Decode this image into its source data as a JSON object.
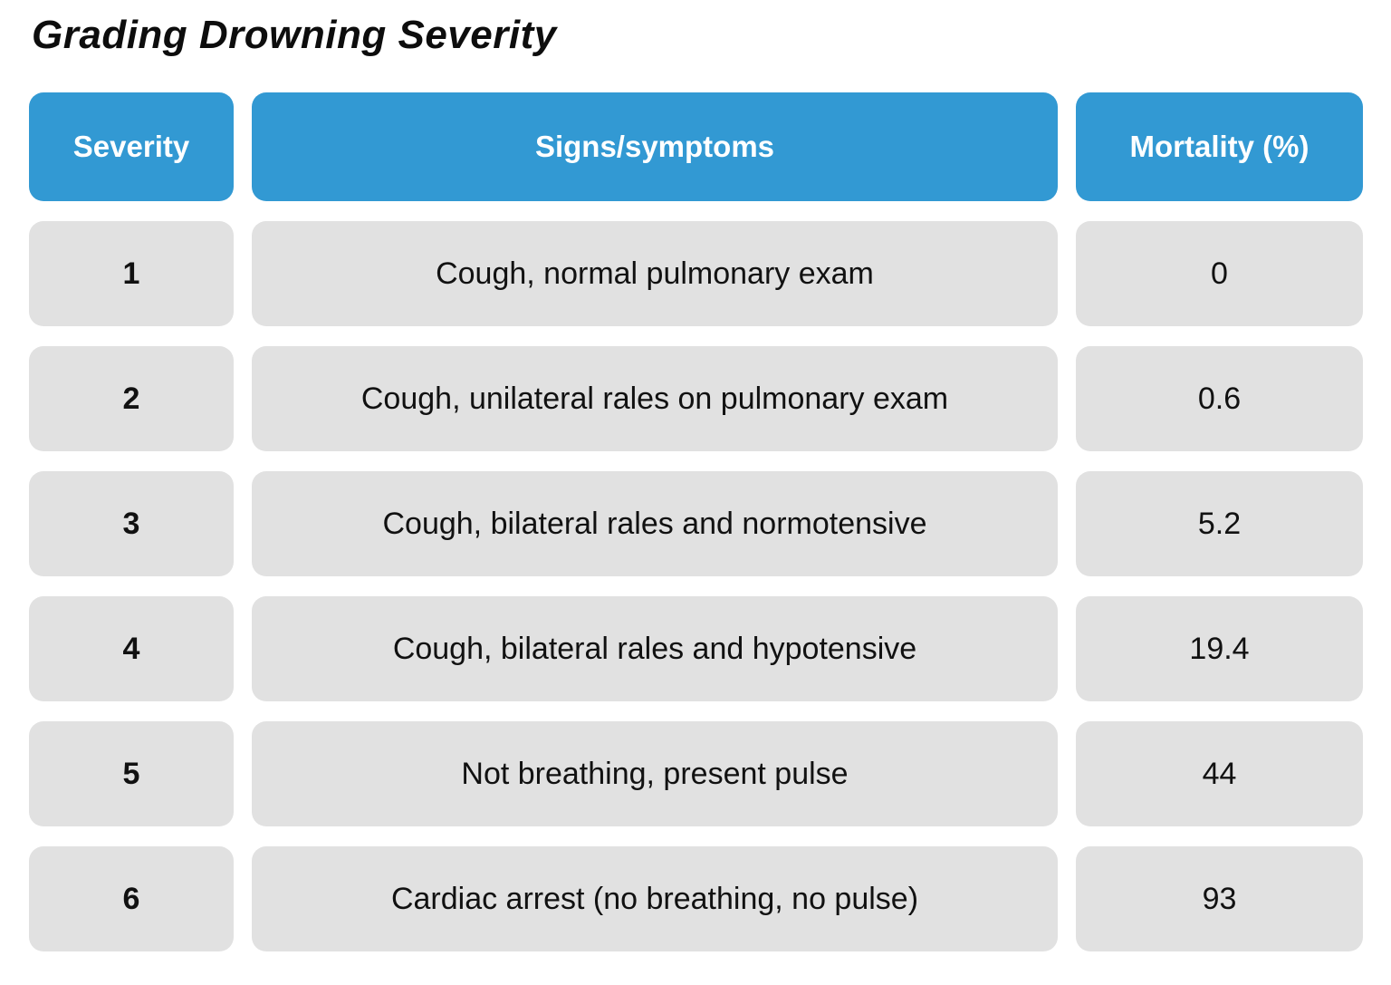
{
  "page": {
    "title": "Grading Drowning Severity"
  },
  "colors": {
    "header_bg": "#3299d3",
    "header_text": "#ffffff",
    "cell_bg": "#e1e1e1",
    "cell_text": "#111111",
    "page_bg": "#ffffff",
    "title_text": "#0d0d0d"
  },
  "table": {
    "headers": {
      "severity": "Severity",
      "signs": "Signs/symptoms",
      "mortality": "Mortality (%)"
    },
    "rows": [
      {
        "severity": "1",
        "signs": "Cough, normal pulmonary exam",
        "mortality": "0"
      },
      {
        "severity": "2",
        "signs": "Cough, unilateral rales on pulmonary exam",
        "mortality": "0.6"
      },
      {
        "severity": "3",
        "signs": "Cough, bilateral rales and normotensive",
        "mortality": "5.2"
      },
      {
        "severity": "4",
        "signs": "Cough, bilateral rales and hypotensive",
        "mortality": "19.4"
      },
      {
        "severity": "5",
        "signs": "Not breathing, present pulse",
        "mortality": "44"
      },
      {
        "severity": "6",
        "signs": "Cardiac arrest (no breathing, no pulse)",
        "mortality": "93"
      }
    ]
  },
  "chart_data": {
    "type": "table",
    "title": "Grading Drowning Severity",
    "columns": [
      "Severity",
      "Signs/symptoms",
      "Mortality (%)"
    ],
    "rows": [
      [
        "1",
        "Cough, normal pulmonary exam",
        0
      ],
      [
        "2",
        "Cough, unilateral rales on pulmonary exam",
        0.6
      ],
      [
        "3",
        "Cough, bilateral rales and normotensive",
        5.2
      ],
      [
        "4",
        "Cough, bilateral rales and hypotensive",
        19.4
      ],
      [
        "5",
        "Not breathing, present pulse",
        44
      ],
      [
        "6",
        "Cardiac arrest (no breathing, no pulse)",
        93
      ]
    ]
  }
}
